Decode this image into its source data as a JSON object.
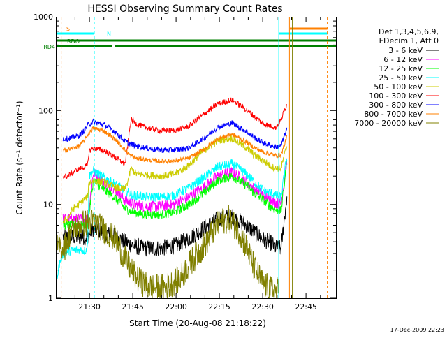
{
  "chart_data": {
    "type": "line",
    "title": "HESSI Observing Summary Count Rates",
    "xlabel": "Start Time (20-Aug-08 21:18:22)",
    "ylabel": "Count Rate (s⁻¹ detector⁻¹)",
    "y_scale": "log",
    "ylim": [
      1,
      1000
    ],
    "xlim_minutes_after_start": [
      0,
      97
    ],
    "x_ticks": [
      {
        "label": "21:30",
        "minute": 11.63
      },
      {
        "label": "21:45",
        "minute": 26.63
      },
      {
        "label": "22:00",
        "minute": 41.63
      },
      {
        "label": "22:15",
        "minute": 56.63
      },
      {
        "label": "22:30",
        "minute": 71.63
      },
      {
        "label": "22:45",
        "minute": 86.63
      }
    ],
    "y_ticks": [
      {
        "label": "1",
        "value": 1
      },
      {
        "label": "10",
        "value": 10
      },
      {
        "label": "100",
        "value": 100
      },
      {
        "label": "1000",
        "value": 1000
      }
    ],
    "grid": false,
    "legend_position": "right",
    "legend_header": [
      "Det 1,3,4,5,6,9,",
      "FDecim 1, Att 0"
    ],
    "footer_date": "17-Dec-2009 22:23",
    "flags": [
      {
        "label": "S",
        "color": "#ff8000"
      },
      {
        "label": "N",
        "color": "#00ffff"
      },
      {
        "label": "RDO",
        "color": "#008000"
      },
      {
        "label": "RD4",
        "color": "#008000"
      }
    ],
    "series": [
      {
        "name": "3 - 6 keV",
        "color": "#000000",
        "noise": 0.09,
        "x": [
          2.5,
          11,
          13,
          17,
          21,
          24,
          27,
          31,
          36,
          41,
          46,
          51,
          56,
          61,
          66,
          69,
          72,
          75,
          76,
          78,
          80
        ],
        "y": [
          4.5,
          4.5,
          5.5,
          5,
          4.5,
          4.0,
          3.6,
          3.4,
          3.4,
          3.6,
          4.3,
          5.5,
          7.0,
          7.5,
          6.0,
          5,
          4.2,
          3.8,
          3.5,
          3.4,
          12
        ]
      },
      {
        "name": "6 - 12 keV",
        "color": "#ff00ff",
        "noise": 0.06,
        "x": [
          2.5,
          11,
          13,
          17,
          21,
          24,
          27,
          31,
          36,
          41,
          46,
          51,
          56,
          61,
          66,
          69,
          72,
          75,
          76,
          78,
          80
        ],
        "y": [
          7,
          7,
          22,
          17,
          14,
          11,
          10,
          9.5,
          9.5,
          10,
          12,
          15,
          20,
          22,
          17.5,
          14.5,
          12.5,
          11,
          10.5,
          10,
          30
        ]
      },
      {
        "name": "12 - 25 keV",
        "color": "#00ff00",
        "noise": 0.05,
        "x": [
          2.5,
          11,
          13,
          17,
          21,
          24,
          27,
          31,
          36,
          41,
          46,
          51,
          56,
          61,
          66,
          69,
          72,
          75,
          76,
          78,
          80
        ],
        "y": [
          6,
          6,
          18,
          14,
          11.5,
          9,
          8.2,
          7.8,
          7.8,
          8.2,
          10,
          13,
          18,
          20,
          16,
          13,
          11,
          9.2,
          8.8,
          8.5,
          28
        ]
      },
      {
        "name": "25 - 50 keV",
        "color": "#00ffff",
        "noise": 0.05,
        "x": [
          0.5,
          1.5,
          2.5,
          5,
          8,
          10,
          11,
          11.5,
          13,
          17,
          21,
          24,
          27,
          31,
          36,
          41,
          46,
          51,
          56,
          61,
          66,
          69,
          72,
          75,
          76,
          78,
          80
        ],
        "y": [
          1.8,
          2.5,
          3.0,
          3.2,
          3.3,
          3.2,
          3.5,
          20,
          23,
          19,
          16,
          14,
          12.5,
          12,
          12,
          12.5,
          15,
          19,
          25,
          27,
          21,
          17,
          14,
          13,
          12.5,
          12,
          32
        ]
      },
      {
        "name": "50 - 100 keV",
        "color": "#cccc00",
        "noise": 0.04,
        "x": [
          2.5,
          4,
          6,
          8,
          10,
          11,
          11.5,
          13,
          17,
          21,
          24,
          25,
          26,
          28,
          31,
          36,
          41,
          46,
          51,
          56,
          61,
          66,
          69,
          72,
          75,
          76,
          78,
          80
        ],
        "y": [
          6.5,
          7,
          9,
          10,
          11.5,
          12,
          17,
          18,
          17,
          15,
          14.5,
          18,
          24,
          21,
          20.5,
          20,
          21,
          26,
          37,
          48,
          51,
          40,
          33,
          29,
          25,
          24,
          24.5,
          42
        ]
      },
      {
        "name": "100 - 300 keV",
        "color": "#ff0000",
        "noise": 0.03,
        "x": [
          2.5,
          4,
          6,
          8,
          10,
          11,
          11.5,
          13,
          17,
          21,
          23,
          24,
          25,
          26,
          28,
          31,
          36,
          41,
          46,
          51,
          56,
          61,
          66,
          69,
          72,
          75,
          76,
          78,
          80
        ],
        "y": [
          20,
          20,
          22,
          24,
          25,
          26,
          37,
          40,
          37,
          31,
          28,
          27,
          45,
          80,
          72,
          66,
          61,
          61,
          68,
          90,
          118,
          130,
          102,
          85,
          72,
          68,
          65,
          80,
          118
        ]
      },
      {
        "name": "300 - 800 keV",
        "color": "#0000ff",
        "noise": 0.03,
        "x": [
          2.5,
          4,
          8,
          10,
          11,
          13,
          17,
          21,
          23,
          24,
          25,
          26,
          28,
          31,
          36,
          41,
          46,
          51,
          56,
          61,
          66,
          69,
          72,
          75,
          76,
          78,
          80
        ],
        "y": [
          50,
          50,
          54,
          62,
          70,
          76,
          70,
          58,
          50,
          47,
          45,
          44,
          42,
          40,
          38,
          38,
          40,
          50,
          66,
          74,
          60,
          51,
          45,
          42,
          41,
          42,
          65
        ]
      },
      {
        "name": "800 - 7000 keV",
        "color": "#ff8000",
        "noise": 0.025,
        "x": [
          2.5,
          4,
          8,
          10,
          11,
          13,
          17,
          21,
          23,
          24,
          25,
          26,
          28,
          31,
          36,
          41,
          46,
          51,
          56,
          61,
          66,
          69,
          72,
          75,
          76,
          78,
          80
        ],
        "y": [
          37,
          38,
          42,
          48,
          55,
          65,
          60,
          48,
          41,
          38,
          35,
          33,
          31,
          30,
          29,
          29,
          31,
          38,
          50,
          56,
          46,
          40,
          36,
          34,
          33,
          34,
          52
        ]
      },
      {
        "name": "7000 - 20000 keV",
        "color": "#808000",
        "noise": 0.15,
        "x": [
          0.5,
          3,
          5,
          8,
          11,
          13,
          16,
          20,
          23,
          26,
          29,
          33,
          38,
          43,
          47,
          51,
          54,
          57,
          60,
          63,
          66,
          69,
          72,
          75,
          77
        ],
        "y": [
          3.5,
          3.5,
          5,
          6,
          6.5,
          6.5,
          5.5,
          4.5,
          3.0,
          2.0,
          1.5,
          1.3,
          1.3,
          1.6,
          2.5,
          3.5,
          5.0,
          6.5,
          7.0,
          5.5,
          3.5,
          2.0,
          1.4,
          1.2,
          1.2
        ]
      }
    ],
    "vertical_markers": [
      {
        "minute": 0.35,
        "color": "#00ffff",
        "style": "solid"
      },
      {
        "minute": 1.85,
        "color": "#ff8000",
        "style": "dashed"
      },
      {
        "minute": 13.3,
        "color": "#00ffff",
        "style": "dashed"
      },
      {
        "minute": 77.2,
        "color": "#00ffff",
        "style": "solid"
      },
      {
        "minute": 80.9,
        "color": "#ff8000",
        "style": "solid"
      },
      {
        "minute": 81.9,
        "color": "#808000",
        "style": "solid"
      },
      {
        "minute": 94.0,
        "color": "#ff8000",
        "style": "dashed"
      }
    ],
    "flag_bars": [
      {
        "flag": "S",
        "color": "#ff8000",
        "segments": [
          [
            81,
            94
          ]
        ]
      },
      {
        "flag": "N",
        "color": "#00ffff",
        "segments": [
          [
            0.3,
            13.3
          ],
          [
            77.2,
            94
          ]
        ]
      },
      {
        "flag": "RDO",
        "color": "#008000",
        "segments": [
          [
            0.3,
            97
          ]
        ]
      },
      {
        "flag": "RD4",
        "color": "#008000",
        "segments": [
          [
            0.3,
            19.5
          ],
          [
            20.5,
            97
          ]
        ]
      }
    ]
  }
}
